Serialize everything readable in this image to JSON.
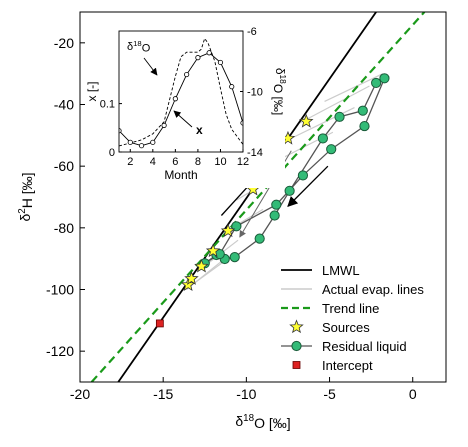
{
  "chart_data": [
    {
      "type": "line",
      "xlabel": "δ18O [‰]",
      "ylabel": "δ2H [‰]",
      "xlim": [
        -20,
        2
      ],
      "ylim": [
        -130,
        -10
      ],
      "x_ticks": [
        -20,
        -15,
        -10,
        -5,
        0
      ],
      "y_ticks": [
        -120,
        -100,
        -80,
        -60,
        -40,
        -20
      ],
      "grid": false,
      "legend_position": "bottom-right",
      "legend": [
        "LMWL",
        "Actual evap. lines",
        "Trend line",
        "Sources",
        "Residual liquid",
        "Intercept"
      ],
      "series": [
        {
          "name": "LMWL",
          "style": "line",
          "color": "#000000",
          "x": [
            -17.7,
            -2.2
          ],
          "y": [
            -130,
            -10
          ]
        },
        {
          "name": "Trend line",
          "style": "dashed",
          "color": "#1a9a1a",
          "x": [
            -19.3,
            0.7
          ],
          "y": [
            -130,
            -10
          ]
        },
        {
          "name": "Actual evap. lines",
          "style": "line",
          "color": "#cccccc",
          "lines": [
            {
              "x": [
                -13.6,
                -11.3
              ],
              "y": [
                -100,
                -90
              ]
            },
            {
              "x": [
                -13.4,
                -10.6
              ],
              "y": [
                -99,
                -88
              ]
            },
            {
              "x": [
                -12.9,
                -10.5
              ],
              "y": [
                -94,
                -84
              ]
            },
            {
              "x": [
                -11.5,
                -9.0
              ],
              "y": [
                -82,
                -74
              ]
            },
            {
              "x": [
                -10.6,
                -7.8
              ],
              "y": [
                -71,
                -62
              ]
            },
            {
              "x": [
                -8.8,
                -4.8
              ],
              "y": [
                -60,
                -49
              ]
            },
            {
              "x": [
                -7.7,
                -3.5
              ],
              "y": [
                -52,
                -41
              ]
            },
            {
              "x": [
                -6.8,
                -2.6
              ],
              "y": [
                -46,
                -34
              ]
            },
            {
              "x": [
                -5.3,
                -1.8
              ],
              "y": [
                -39,
                -30
              ]
            }
          ]
        },
        {
          "name": "Sources",
          "style": "star",
          "color": "#ffff33",
          "x": [
            -13.5,
            -13.3,
            -12.7,
            -12.0,
            -11.1,
            -9.6,
            -8.2,
            -7.5,
            -6.4
          ],
          "y": [
            -98.5,
            -96.5,
            -92.5,
            -87.5,
            -81,
            -67.5,
            -57,
            -51,
            -45.5
          ]
        },
        {
          "name": "Residual liquid",
          "style": "line-circle",
          "color": "#33bb77",
          "x": [
            -12.5,
            -11.8,
            -11.3,
            -10.7,
            -9.2,
            -8.3,
            -7.4,
            -5.4,
            -4.4,
            -3.0,
            -2.2,
            -1.7,
            -2.9,
            -4.9,
            -6.6,
            -8.2,
            -10.6,
            -11.6,
            -12.5
          ],
          "y": [
            -91.5,
            -88.8,
            -90.1,
            -89.5,
            -83.5,
            -76,
            -68,
            -51,
            -44,
            -42,
            -33,
            -31.5,
            -47,
            -54.5,
            -63,
            -72.5,
            -79.5,
            -88.5,
            -91.5
          ]
        },
        {
          "name": "Intercept",
          "style": "square",
          "color": "#dd2222",
          "x": [
            -15.2
          ],
          "y": [
            -111
          ]
        }
      ],
      "annotations": [
        {
          "type": "arrow",
          "direction": "up-right",
          "x": [
            -11.5,
            -9.3
          ],
          "y": [
            -76,
            -63
          ]
        },
        {
          "type": "arrow",
          "direction": "down-left",
          "x": [
            -5.1,
            -7.5
          ],
          "y": [
            -60,
            -73
          ]
        },
        {
          "type": "arrow",
          "direction": "down-left",
          "x": [
            -7.3,
            -10.4
          ],
          "y": [
            -55,
            -83
          ]
        }
      ]
    },
    {
      "type": "line",
      "inset": true,
      "xlabel": "Month",
      "ylabel_left": "x [-]",
      "ylabel_right": "δ18O [‰]",
      "xlim": [
        1,
        12
      ],
      "ylim_left": [
        0,
        0.25
      ],
      "ylim_right": [
        -14,
        -6
      ],
      "x_ticks": [
        2,
        4,
        6,
        8,
        10,
        12
      ],
      "y_ticks_left": [
        0,
        0.1
      ],
      "y_ticks_right": [
        -14,
        -10,
        -6
      ],
      "series": [
        {
          "name": "δ18O",
          "style": "dashed",
          "axis": "right",
          "x": [
            1,
            2,
            3,
            4,
            5,
            6,
            6.5,
            7,
            7.5,
            8,
            8.3,
            8.6,
            8.9,
            9.2,
            9.5,
            10,
            10.5,
            11,
            12
          ],
          "y": [
            -13.6,
            -13.4,
            -13.2,
            -12.8,
            -12,
            -9,
            -7.7,
            -7.4,
            -7.4,
            -7.4,
            -7.2,
            -6.5,
            -6.8,
            -7.4,
            -8,
            -9.8,
            -11.5,
            -12.5,
            -13.5
          ]
        },
        {
          "name": "x",
          "style": "line-circle",
          "axis": "left",
          "x": [
            1,
            2,
            3,
            4,
            5,
            6,
            7,
            8,
            9,
            10,
            11,
            12
          ],
          "y": [
            0.044,
            0.02,
            0.013,
            0.02,
            0.055,
            0.11,
            0.16,
            0.195,
            0.205,
            0.185,
            0.135,
            0.06
          ]
        }
      ],
      "annotations": [
        {
          "text": "δ18O",
          "target": "δ18O",
          "arrow": true
        },
        {
          "text": "x",
          "target": "x",
          "arrow": true
        }
      ]
    }
  ]
}
